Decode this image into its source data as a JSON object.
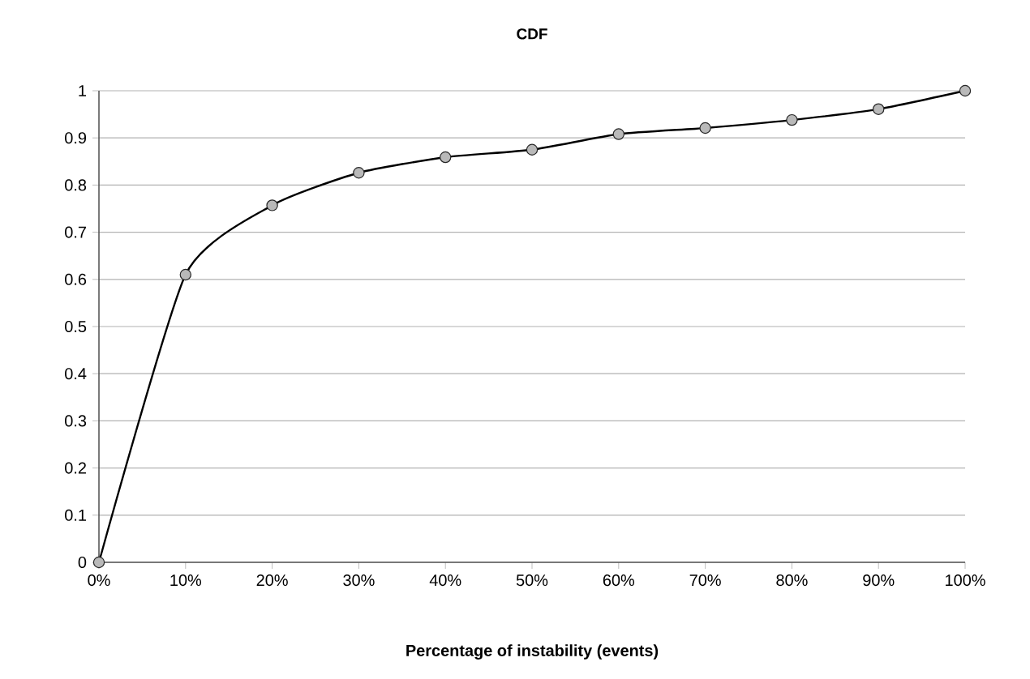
{
  "chart_data": {
    "type": "line",
    "title": "CDF",
    "xlabel": "Percentage of instability (events)",
    "x": [
      0,
      10,
      20,
      30,
      40,
      50,
      60,
      70,
      80,
      90,
      100
    ],
    "series": [
      {
        "color": "#000000",
        "values": [
          0,
          0.61,
          0.757,
          0.826,
          0.859,
          0.875,
          0.908,
          0.921,
          0.938,
          0.961,
          1.0
        ]
      }
    ],
    "xlim": [
      0,
      100
    ],
    "xticks": [
      {
        "value": 0,
        "label": "0%"
      },
      {
        "value": 10,
        "label": "10%"
      },
      {
        "value": 20,
        "label": "20%"
      },
      {
        "value": 30,
        "label": "30%"
      },
      {
        "value": 40,
        "label": "40%"
      },
      {
        "value": 50,
        "label": "50%"
      },
      {
        "value": 60,
        "label": "60%"
      },
      {
        "value": 70,
        "label": "70%"
      },
      {
        "value": 80,
        "label": "80%"
      },
      {
        "value": 90,
        "label": "90%"
      },
      {
        "value": 100,
        "label": "100%"
      }
    ],
    "ylim": [
      0,
      1
    ],
    "yticks": [
      0,
      0.1,
      0.2,
      0.3,
      0.4,
      0.5,
      0.6,
      0.7,
      0.8,
      0.9,
      1
    ],
    "grid": "y",
    "marker": "circle"
  }
}
